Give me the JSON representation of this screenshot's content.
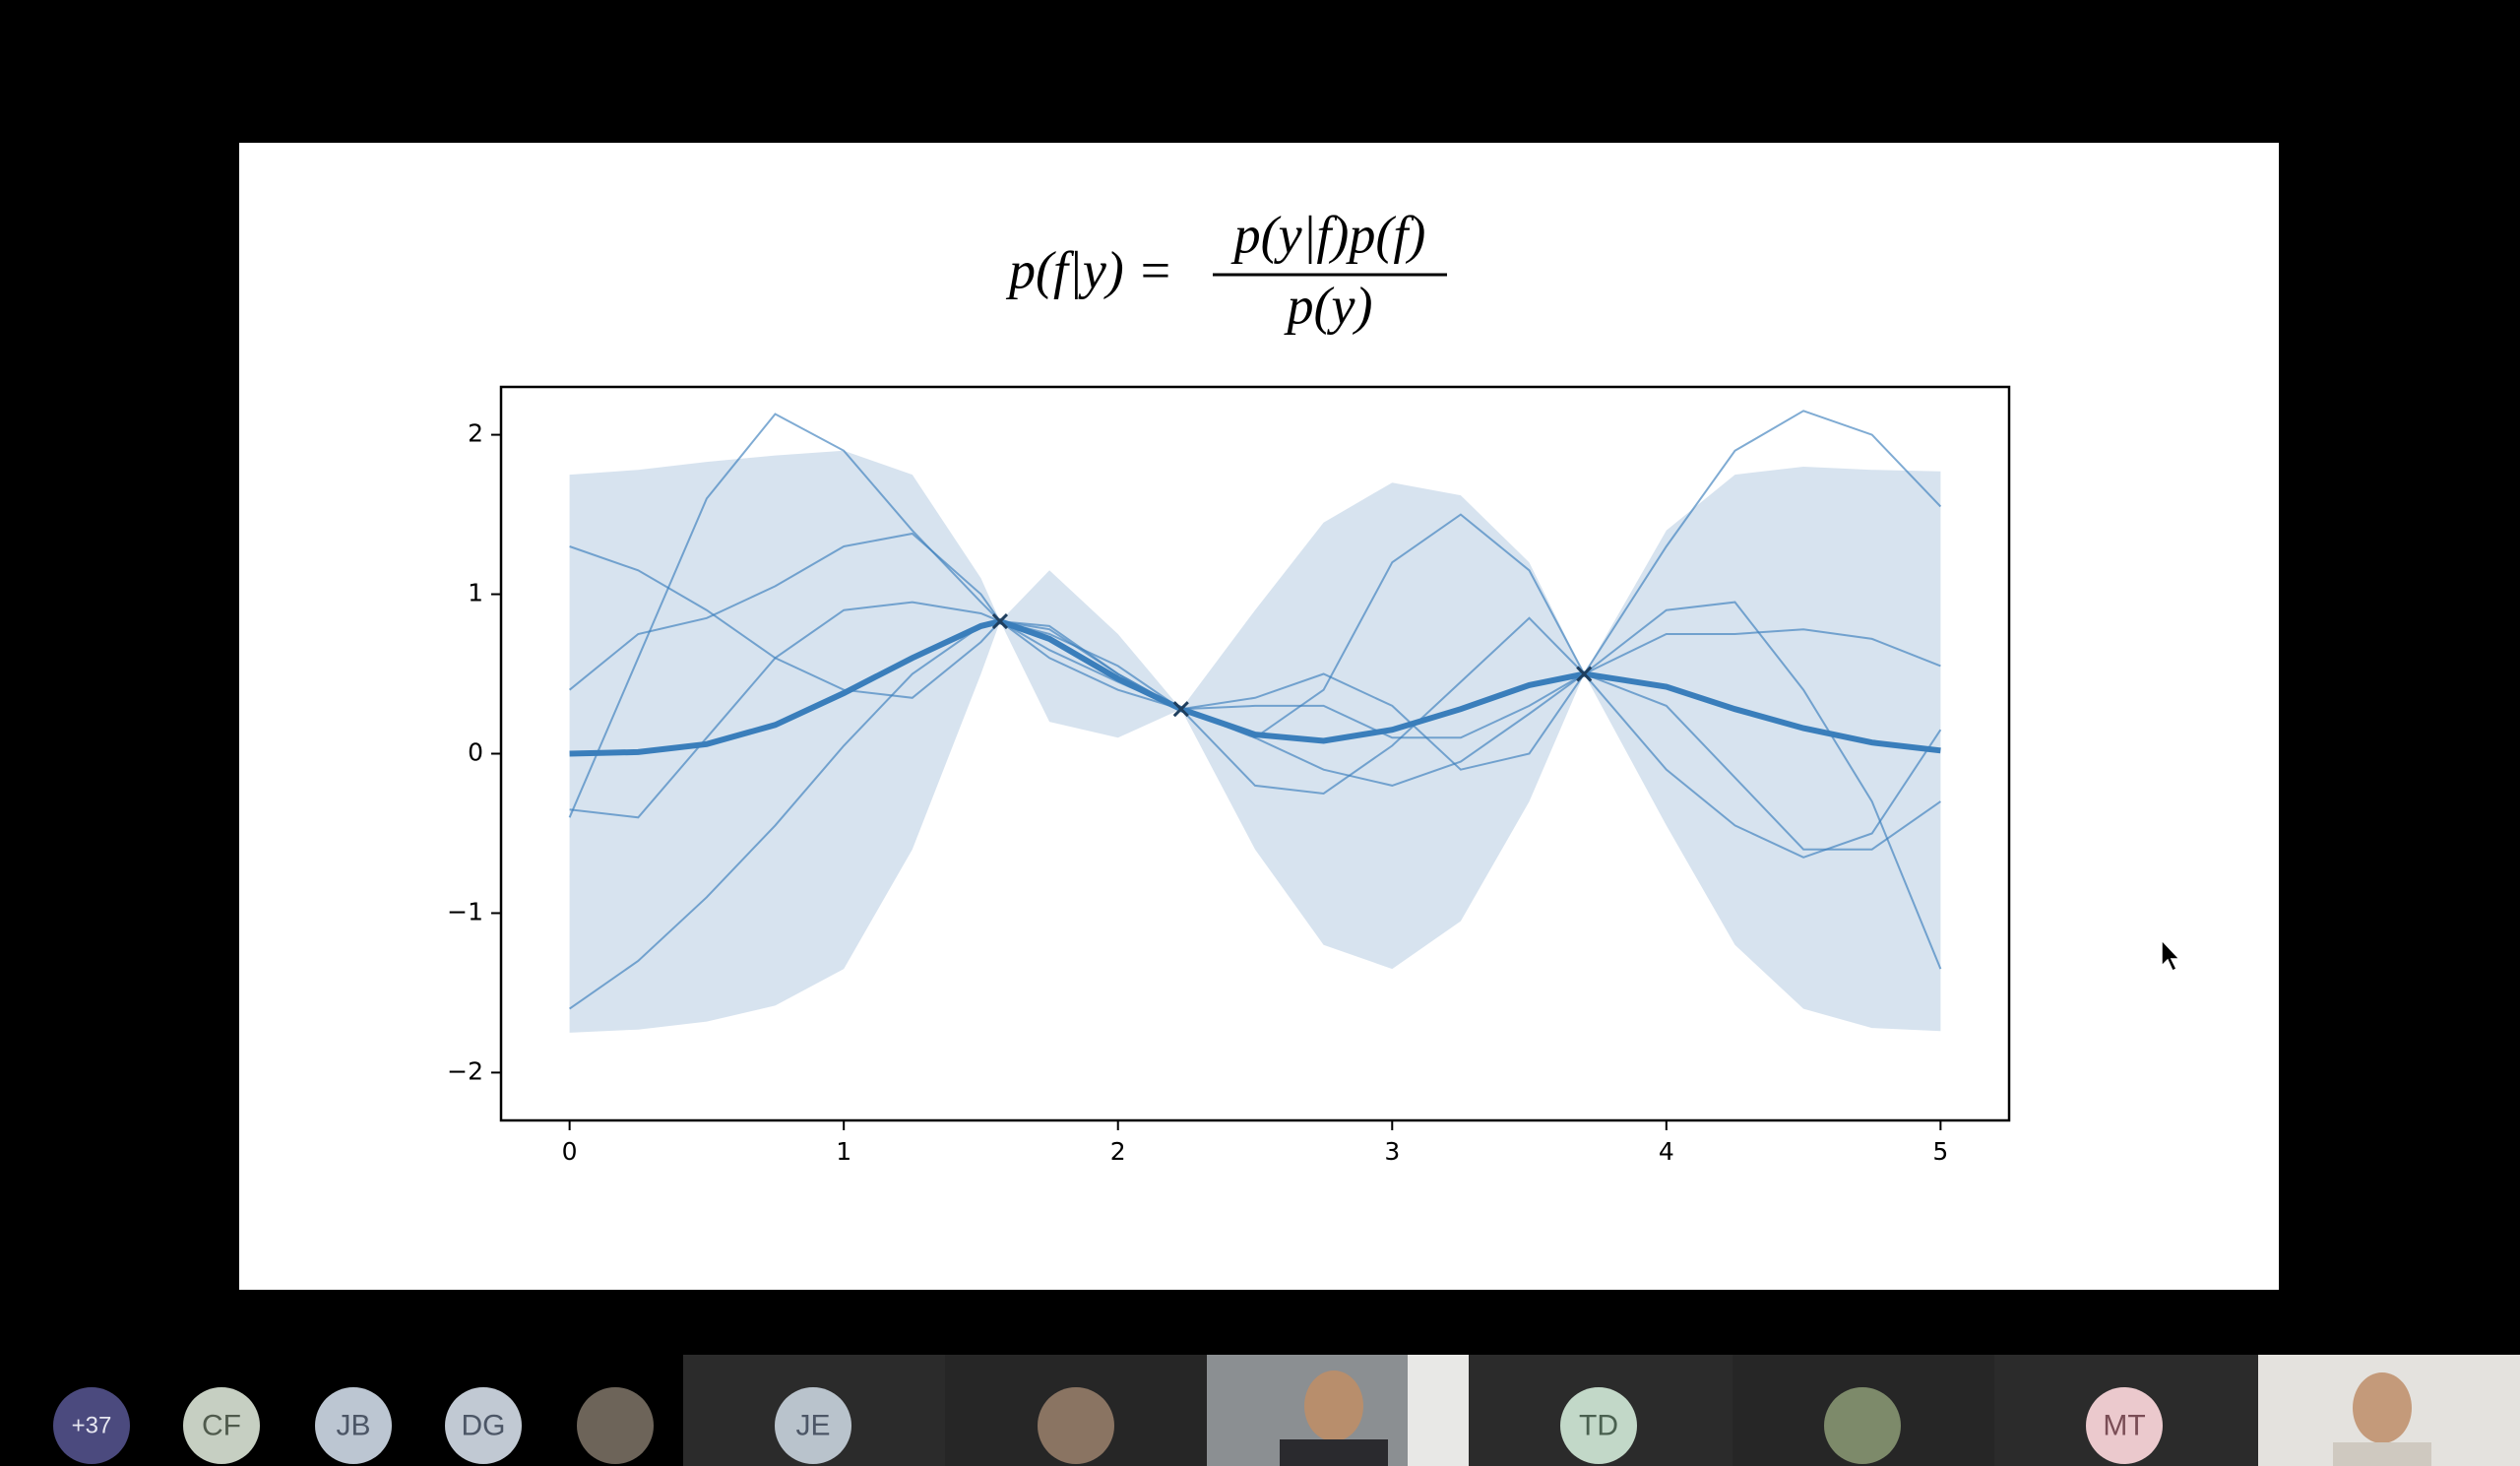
{
  "slide": {
    "equation": {
      "lhs": "p(f|y) =",
      "numerator": "p(y|f)p(f)",
      "denominator": "p(y)"
    }
  },
  "chart_data": {
    "type": "gp",
    "x": [
      0,
      0.25,
      0.5,
      0.75,
      1,
      1.25,
      1.5,
      1.57,
      1.75,
      2,
      2.23,
      2.5,
      2.75,
      3,
      3.25,
      3.5,
      3.7,
      4,
      4.25,
      4.5,
      4.75,
      5
    ],
    "mean": [
      0,
      0.01,
      0.06,
      0.18,
      0.38,
      0.6,
      0.8,
      0.83,
      0.72,
      0.47,
      0.28,
      0.12,
      0.08,
      0.15,
      0.28,
      0.43,
      0.5,
      0.42,
      0.28,
      0.16,
      0.07,
      0.02
    ],
    "band": {
      "upper": [
        1.75,
        1.78,
        1.83,
        1.87,
        1.9,
        1.75,
        1.1,
        0.83,
        1.15,
        0.75,
        0.28,
        0.9,
        1.45,
        1.7,
        1.62,
        1.2,
        0.5,
        1.4,
        1.75,
        1.8,
        1.78,
        1.77
      ],
      "lower": [
        -1.75,
        -1.73,
        -1.68,
        -1.58,
        -1.35,
        -0.6,
        0.5,
        0.83,
        0.2,
        0.1,
        0.28,
        -0.6,
        -1.2,
        -1.35,
        -1.05,
        -0.3,
        0.5,
        -0.45,
        -1.2,
        -1.6,
        -1.72,
        -1.74
      ]
    },
    "samples": [
      [
        -0.4,
        0.6,
        1.6,
        2.13,
        1.9,
        1.4,
        0.95,
        0.83,
        0.6,
        0.4,
        0.28,
        0.3,
        0.3,
        0.1,
        0.1,
        0.3,
        0.5,
        1.3,
        1.9,
        2.15,
        2.0,
        1.55
      ],
      [
        1.3,
        1.15,
        0.9,
        0.6,
        0.4,
        0.35,
        0.7,
        0.83,
        0.8,
        0.5,
        0.28,
        0.1,
        -0.1,
        -0.2,
        -0.05,
        0.25,
        0.5,
        0.9,
        0.95,
        0.4,
        -0.3,
        -1.35
      ],
      [
        -1.6,
        -1.3,
        -0.9,
        -0.45,
        0.05,
        0.5,
        0.8,
        0.83,
        0.75,
        0.55,
        0.28,
        0.1,
        0.4,
        1.2,
        1.5,
        1.15,
        0.5,
        -0.1,
        -0.45,
        -0.65,
        -0.5,
        0.15
      ],
      [
        0.4,
        0.75,
        0.85,
        1.05,
        1.3,
        1.38,
        1.0,
        0.83,
        0.65,
        0.45,
        0.28,
        0.35,
        0.5,
        0.3,
        -0.1,
        0.0,
        0.5,
        0.75,
        0.75,
        0.78,
        0.72,
        0.55
      ],
      [
        -0.35,
        -0.4,
        0.1,
        0.6,
        0.9,
        0.95,
        0.88,
        0.83,
        0.78,
        0.5,
        0.28,
        -0.2,
        -0.25,
        0.05,
        0.45,
        0.85,
        0.5,
        0.3,
        -0.15,
        -0.6,
        -0.6,
        -0.3
      ]
    ],
    "observations": {
      "x": [
        1.57,
        2.23,
        3.7
      ],
      "y": [
        0.83,
        0.28,
        0.5
      ]
    },
    "mean_color": "#3a7ebb",
    "sample_color": "#3a7ebb",
    "band_color": "#c9d9ea",
    "xlim": [
      -0.25,
      5.25
    ],
    "ylim": [
      -2.3,
      2.3
    ],
    "xticks": [
      0,
      1,
      2,
      3,
      4,
      5
    ],
    "yticks": [
      {
        "value": -2,
        "label": "−2"
      },
      {
        "value": -1,
        "label": "−1"
      },
      0,
      1,
      2
    ]
  },
  "participants": [
    "+37",
    "CF",
    "JB",
    "DG",
    "JE",
    "TD",
    "MT"
  ]
}
